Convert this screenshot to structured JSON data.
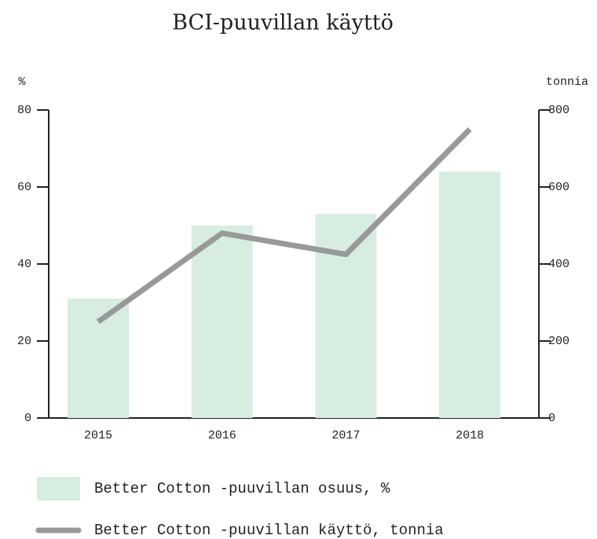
{
  "chart_data": {
    "type": "bar",
    "title": "BCI-puuvillan käyttö",
    "y_label": "%",
    "y2_label": "tonnia",
    "categories": [
      "2015",
      "2016",
      "2017",
      "2018"
    ],
    "series": [
      {
        "name": "Better Cotton -puuvillan osuus, %",
        "type": "bar",
        "color": "#d6ede0",
        "values": [
          31,
          50,
          53,
          64
        ]
      },
      {
        "name": "Better Cotton -puuvillan käyttö, tonnia",
        "type": "line",
        "axis": "y2",
        "color": "#999999",
        "values": [
          250,
          480,
          425,
          750
        ]
      }
    ],
    "ylim": [
      0,
      80
    ],
    "yticks": [
      0,
      20,
      40,
      60,
      80
    ],
    "y2lim": [
      0,
      800
    ],
    "y2ticks": [
      0,
      200,
      400,
      600,
      800
    ],
    "grid": false
  }
}
